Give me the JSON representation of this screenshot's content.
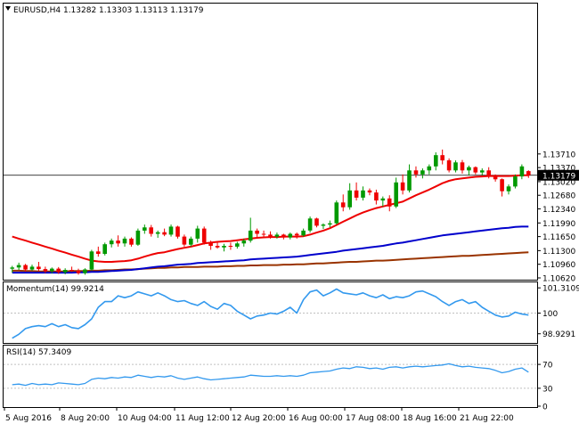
{
  "colors": {
    "bull": "#009900",
    "bear": "#ee0000",
    "ma_fast": "#ee0000",
    "ma_mid": "#0000cc",
    "ma_slow": "#993300",
    "oscillator": "#3399ee",
    "level_line": "#c0c0c0",
    "price_line": "#000000",
    "frame": "#000000"
  },
  "chart_data": [
    {
      "type": "candlestick",
      "title": "EURUSD,H4  1.13282 1.13303 1.13113 1.13179",
      "marker_icon": "triangle-down-icon",
      "ylim": [
        1.1062,
        1.1737
      ],
      "yticks": [
        "1.13710",
        "1.13370",
        "1.13179",
        "1.13020",
        "1.12680",
        "1.12340",
        "1.11990",
        "1.11650",
        "1.11300",
        "1.10960",
        "1.10620"
      ],
      "current_price": 1.13179,
      "current_price_label": "1.13179",
      "xticks": [
        "5 Aug 2016",
        "8 Aug 20:00",
        "10 Aug 04:00",
        "11 Aug 12:00",
        "12 Aug 20:00",
        "16 Aug 00:00",
        "17 Aug 08:00",
        "18 Aug 16:00",
        "21 Aug 22:00"
      ],
      "candles": [
        [
          1.1085,
          1.1092,
          1.1075,
          1.1088
        ],
        [
          1.1088,
          1.11,
          1.1082,
          1.1094
        ],
        [
          1.1094,
          1.1097,
          1.1078,
          1.1083
        ],
        [
          1.1083,
          1.1095,
          1.108,
          1.109
        ],
        [
          1.109,
          1.1102,
          1.1079,
          1.1084
        ],
        [
          1.1084,
          1.109,
          1.1074,
          1.1079
        ],
        [
          1.1079,
          1.1088,
          1.1073,
          1.1085
        ],
        [
          1.1085,
          1.1089,
          1.1072,
          1.1076
        ],
        [
          1.1076,
          1.1086,
          1.1071,
          1.1082
        ],
        [
          1.1082,
          1.109,
          1.1077,
          1.108
        ],
        [
          1.108,
          1.1085,
          1.107,
          1.1074
        ],
        [
          1.1074,
          1.1086,
          1.107,
          1.1083
        ],
        [
          1.1083,
          1.1132,
          1.108,
          1.1128
        ],
        [
          1.1128,
          1.114,
          1.1115,
          1.1122
        ],
        [
          1.1122,
          1.115,
          1.1118,
          1.1146
        ],
        [
          1.1146,
          1.116,
          1.1138,
          1.1155
        ],
        [
          1.1155,
          1.1168,
          1.114,
          1.1148
        ],
        [
          1.1148,
          1.1165,
          1.114,
          1.116
        ],
        [
          1.116,
          1.1163,
          1.114,
          1.1145
        ],
        [
          1.1145,
          1.1185,
          1.1142,
          1.118
        ],
        [
          1.118,
          1.1195,
          1.1172,
          1.1188
        ],
        [
          1.1188,
          1.1194,
          1.1165,
          1.1172
        ],
        [
          1.1172,
          1.118,
          1.1162,
          1.1176
        ],
        [
          1.1176,
          1.1185,
          1.1166,
          1.117
        ],
        [
          1.117,
          1.1195,
          1.1165,
          1.119
        ],
        [
          1.119,
          1.1192,
          1.116,
          1.1165
        ],
        [
          1.1165,
          1.117,
          1.114,
          1.1145
        ],
        [
          1.1145,
          1.1165,
          1.114,
          1.116
        ],
        [
          1.116,
          1.1192,
          1.115,
          1.1185
        ],
        [
          1.1185,
          1.119,
          1.1145,
          1.115
        ],
        [
          1.115,
          1.1155,
          1.1132,
          1.1142
        ],
        [
          1.1142,
          1.115,
          1.1135,
          1.1138
        ],
        [
          1.1138,
          1.1147,
          1.1128,
          1.1142
        ],
        [
          1.1142,
          1.115,
          1.1132,
          1.114
        ],
        [
          1.114,
          1.1152,
          1.1135,
          1.1148
        ],
        [
          1.1148,
          1.116,
          1.114,
          1.1155
        ],
        [
          1.1155,
          1.1212,
          1.115,
          1.118
        ],
        [
          1.118,
          1.1185,
          1.116,
          1.1172
        ],
        [
          1.1172,
          1.118,
          1.1165,
          1.117
        ],
        [
          1.117,
          1.1178,
          1.116,
          1.1165
        ],
        [
          1.1165,
          1.1175,
          1.116,
          1.117
        ],
        [
          1.117,
          1.1172,
          1.1158,
          1.1163
        ],
        [
          1.1163,
          1.1175,
          1.1158,
          1.1172
        ],
        [
          1.1172,
          1.1175,
          1.116,
          1.1168
        ],
        [
          1.1168,
          1.1185,
          1.1165,
          1.118
        ],
        [
          1.118,
          1.1215,
          1.1175,
          1.121
        ],
        [
          1.121,
          1.1212,
          1.1188,
          1.1192
        ],
        [
          1.1192,
          1.1198,
          1.1184,
          1.1195
        ],
        [
          1.1195,
          1.1205,
          1.1188,
          1.1198
        ],
        [
          1.1198,
          1.1255,
          1.1195,
          1.125
        ],
        [
          1.125,
          1.127,
          1.1228,
          1.1238
        ],
        [
          1.1238,
          1.1298,
          1.1232,
          1.128
        ],
        [
          1.128,
          1.13,
          1.1255,
          1.1262
        ],
        [
          1.1262,
          1.129,
          1.1255,
          1.128
        ],
        [
          1.128,
          1.1285,
          1.1268,
          1.1275
        ],
        [
          1.1275,
          1.1282,
          1.1245,
          1.1255
        ],
        [
          1.1255,
          1.1265,
          1.124,
          1.126
        ],
        [
          1.126,
          1.1268,
          1.1228,
          1.124
        ],
        [
          1.124,
          1.1312,
          1.1236,
          1.13
        ],
        [
          1.13,
          1.132,
          1.127,
          1.128
        ],
        [
          1.128,
          1.1345,
          1.1275,
          1.133
        ],
        [
          1.133,
          1.134,
          1.1312,
          1.132
        ],
        [
          1.132,
          1.1335,
          1.131,
          1.133
        ],
        [
          1.133,
          1.1345,
          1.132,
          1.134
        ],
        [
          1.134,
          1.1375,
          1.133,
          1.1368
        ],
        [
          1.1368,
          1.1382,
          1.1345,
          1.1355
        ],
        [
          1.1355,
          1.136,
          1.1325,
          1.133
        ],
        [
          1.133,
          1.1355,
          1.1325,
          1.135
        ],
        [
          1.135,
          1.1356,
          1.1322,
          1.133
        ],
        [
          1.133,
          1.1342,
          1.1318,
          1.1338
        ],
        [
          1.1338,
          1.134,
          1.132,
          1.1325
        ],
        [
          1.1325,
          1.1335,
          1.1318,
          1.133
        ],
        [
          1.133,
          1.1338,
          1.131,
          1.1315
        ],
        [
          1.1315,
          1.132,
          1.1302,
          1.1308
        ],
        [
          1.1308,
          1.131,
          1.1265,
          1.1278
        ],
        [
          1.1278,
          1.1295,
          1.127,
          1.129
        ],
        [
          1.129,
          1.132,
          1.1285,
          1.1315
        ],
        [
          1.1315,
          1.1345,
          1.1308,
          1.134
        ],
        [
          1.13282,
          1.13303,
          1.13113,
          1.13179
        ]
      ],
      "ma_fast": [
        1.1165,
        1.116,
        1.1155,
        1.115,
        1.1145,
        1.114,
        1.1135,
        1.113,
        1.1125,
        1.112,
        1.1115,
        1.111,
        1.1105,
        1.1103,
        1.1102,
        1.1102,
        1.1103,
        1.1104,
        1.1106,
        1.111,
        1.1115,
        1.112,
        1.1124,
        1.1126,
        1.113,
        1.1134,
        1.1137,
        1.114,
        1.1144,
        1.1148,
        1.115,
        1.1152,
        1.1153,
        1.1154,
        1.1156,
        1.1158,
        1.116,
        1.1162,
        1.1163,
        1.1164,
        1.1164,
        1.1165,
        1.1165,
        1.1165,
        1.1166,
        1.117,
        1.1175,
        1.118,
        1.1186,
        1.1194,
        1.1202,
        1.121,
        1.1218,
        1.1225,
        1.1231,
        1.1236,
        1.124,
        1.1244,
        1.1248,
        1.1252,
        1.126,
        1.1268,
        1.1275,
        1.1282,
        1.129,
        1.1298,
        1.1304,
        1.1308,
        1.131,
        1.1312,
        1.1314,
        1.1315,
        1.1316,
        1.1316,
        1.1316,
        1.1316,
        1.1317,
        1.1318,
        1.1318
      ],
      "ma_mid": [
        1.1075,
        1.1075,
        1.1075,
        1.1075,
        1.1075,
        1.1075,
        1.1075,
        1.1075,
        1.1075,
        1.1075,
        1.1076,
        1.1076,
        1.1077,
        1.1077,
        1.1078,
        1.1079,
        1.108,
        1.1081,
        1.1082,
        1.1084,
        1.1086,
        1.1088,
        1.109,
        1.1091,
        1.1093,
        1.1095,
        1.1096,
        1.1097,
        1.1099,
        1.11,
        1.1101,
        1.1102,
        1.1103,
        1.1104,
        1.1105,
        1.1106,
        1.1108,
        1.1109,
        1.111,
        1.1111,
        1.1112,
        1.1113,
        1.1114,
        1.1115,
        1.1117,
        1.1119,
        1.1121,
        1.1123,
        1.1125,
        1.1127,
        1.113,
        1.1132,
        1.1134,
        1.1136,
        1.1138,
        1.114,
        1.1142,
        1.1145,
        1.1148,
        1.115,
        1.1153,
        1.1156,
        1.1159,
        1.1162,
        1.1165,
        1.1168,
        1.117,
        1.1172,
        1.1174,
        1.1176,
        1.1178,
        1.118,
        1.1182,
        1.1184,
        1.1186,
        1.1187,
        1.1189,
        1.119,
        1.119
      ],
      "ma_slow": [
        1.108,
        1.108,
        1.1079,
        1.1079,
        1.1078,
        1.1078,
        1.1078,
        1.1078,
        1.1078,
        1.1079,
        1.1079,
        1.1079,
        1.108,
        1.108,
        1.1081,
        1.1081,
        1.1082,
        1.1083,
        1.1083,
        1.1084,
        1.1085,
        1.1086,
        1.1087,
        1.1087,
        1.1088,
        1.1088,
        1.1089,
        1.1089,
        1.1089,
        1.109,
        1.109,
        1.109,
        1.1091,
        1.1091,
        1.1092,
        1.1092,
        1.1093,
        1.1093,
        1.1094,
        1.1094,
        1.1094,
        1.1095,
        1.1095,
        1.1096,
        1.1096,
        1.1097,
        1.1098,
        1.1098,
        1.1099,
        1.11,
        1.1101,
        1.1102,
        1.1102,
        1.1103,
        1.1104,
        1.1105,
        1.1105,
        1.1106,
        1.1107,
        1.1108,
        1.1109,
        1.111,
        1.1111,
        1.1112,
        1.1113,
        1.1114,
        1.1115,
        1.1116,
        1.1117,
        1.1117,
        1.1118,
        1.1119,
        1.112,
        1.1121,
        1.1122,
        1.1123,
        1.1124,
        1.1125,
        1.1126
      ]
    },
    {
      "type": "line",
      "title": "Momentum(14) 99.9214",
      "ylim": [
        98.5,
        101.55
      ],
      "yticks": [
        {
          "value": 101.3109,
          "label": "101.3109"
        },
        {
          "value": 100,
          "label": "100"
        },
        {
          "value": 98.9291,
          "label": "98.9291"
        }
      ],
      "level": 100,
      "values": [
        98.7,
        98.9,
        99.2,
        99.3,
        99.35,
        99.3,
        99.45,
        99.3,
        99.4,
        99.25,
        99.2,
        99.4,
        99.7,
        100.3,
        100.6,
        100.6,
        100.9,
        100.8,
        100.9,
        101.1,
        101.0,
        100.9,
        101.05,
        100.9,
        100.7,
        100.6,
        100.65,
        100.5,
        100.4,
        100.6,
        100.35,
        100.2,
        100.5,
        100.4,
        100.1,
        99.9,
        99.7,
        99.85,
        99.9,
        100.0,
        99.95,
        100.1,
        100.3,
        100.0,
        100.7,
        101.1,
        101.2,
        100.9,
        101.05,
        101.25,
        101.05,
        101.0,
        100.95,
        101.05,
        100.9,
        100.8,
        100.95,
        100.75,
        100.85,
        100.8,
        100.9,
        101.1,
        101.15,
        101.0,
        100.85,
        100.6,
        100.4,
        100.6,
        100.7,
        100.5,
        100.6,
        100.3,
        100.1,
        99.9,
        99.8,
        99.85,
        100.05,
        99.95,
        99.9
      ]
    },
    {
      "type": "line",
      "title": "RSI(14) 57.3409",
      "ylim": [
        0,
        100
      ],
      "yticks": [
        {
          "value": 70,
          "label": "70"
        },
        {
          "value": 30,
          "label": "30"
        },
        {
          "value": 0,
          "label": "0"
        }
      ],
      "levels": [
        70,
        30
      ],
      "values": [
        36,
        37,
        35,
        38,
        36,
        37,
        36,
        39,
        38,
        37,
        36,
        38,
        45,
        47,
        46,
        48,
        47,
        49,
        48,
        52,
        50,
        48,
        50,
        49,
        51,
        47,
        45,
        47,
        49,
        46,
        44,
        45,
        46,
        47,
        48,
        49,
        52,
        51,
        50,
        50,
        51,
        50,
        51,
        50,
        52,
        56,
        57,
        58,
        59,
        62,
        64,
        63,
        66,
        65,
        63,
        64,
        62,
        65,
        66,
        64,
        66,
        67,
        66,
        67,
        68,
        69,
        71,
        68,
        66,
        67,
        65,
        64,
        63,
        60,
        56,
        58,
        62,
        64,
        57
      ]
    }
  ]
}
